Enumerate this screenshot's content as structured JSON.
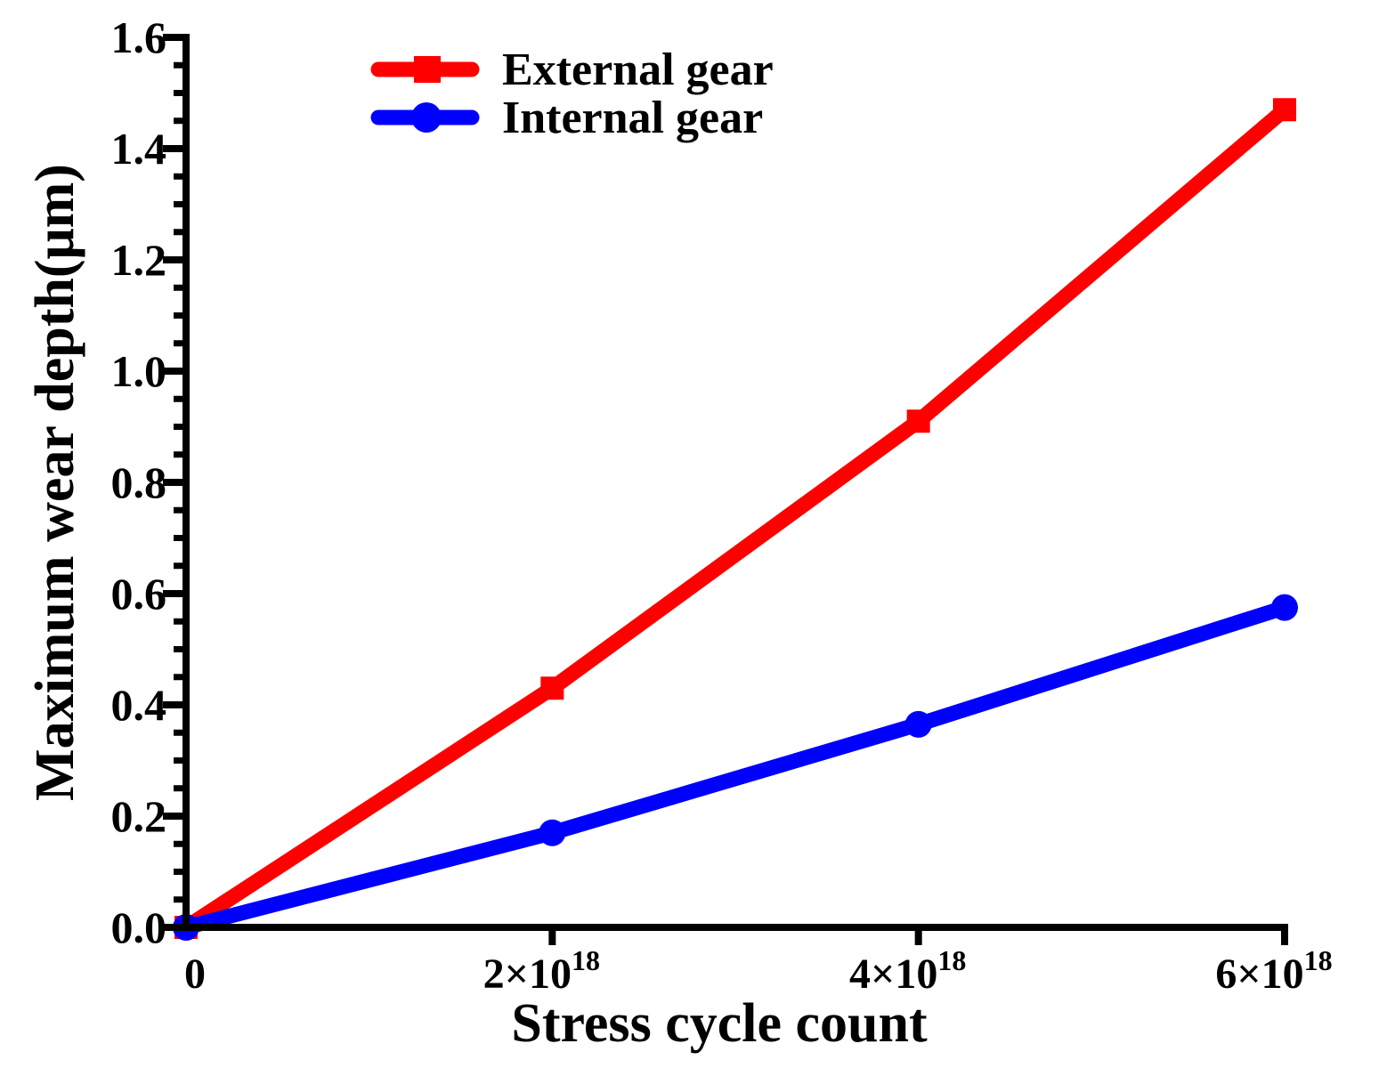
{
  "chart_data": {
    "type": "line",
    "title": "",
    "xlabel": "Stress cycle count",
    "ylabel": "Maximum wear depth(μm)",
    "xlim": [
      0,
      6
    ],
    "ylim": [
      0,
      1.6
    ],
    "x_scale_note": "x values in units of 10^18",
    "x_ticks": [
      {
        "value": 0,
        "mantissa": "0",
        "exponent": ""
      },
      {
        "value": 2,
        "mantissa": "2×10",
        "exponent": "18"
      },
      {
        "value": 4,
        "mantissa": "4×10",
        "exponent": "18"
      },
      {
        "value": 6,
        "mantissa": "6×10",
        "exponent": "18"
      }
    ],
    "y_ticks": [
      "0.0",
      "0.2",
      "0.4",
      "0.6",
      "0.8",
      "1.0",
      "1.2",
      "1.4",
      "1.6"
    ],
    "y_tick_values": [
      0,
      0.2,
      0.4,
      0.6,
      0.8,
      1.0,
      1.2,
      1.4,
      1.6
    ],
    "legend_position": "top-center",
    "series": [
      {
        "name": "External gear",
        "color": "#ff0000",
        "marker": "square",
        "x": [
          0,
          2,
          4,
          6
        ],
        "values": [
          0,
          0.43,
          0.91,
          1.47
        ]
      },
      {
        "name": "Internal gear",
        "color": "#0000ff",
        "marker": "circle",
        "x": [
          0,
          2,
          4,
          6
        ],
        "values": [
          0,
          0.17,
          0.365,
          0.575
        ]
      }
    ]
  }
}
